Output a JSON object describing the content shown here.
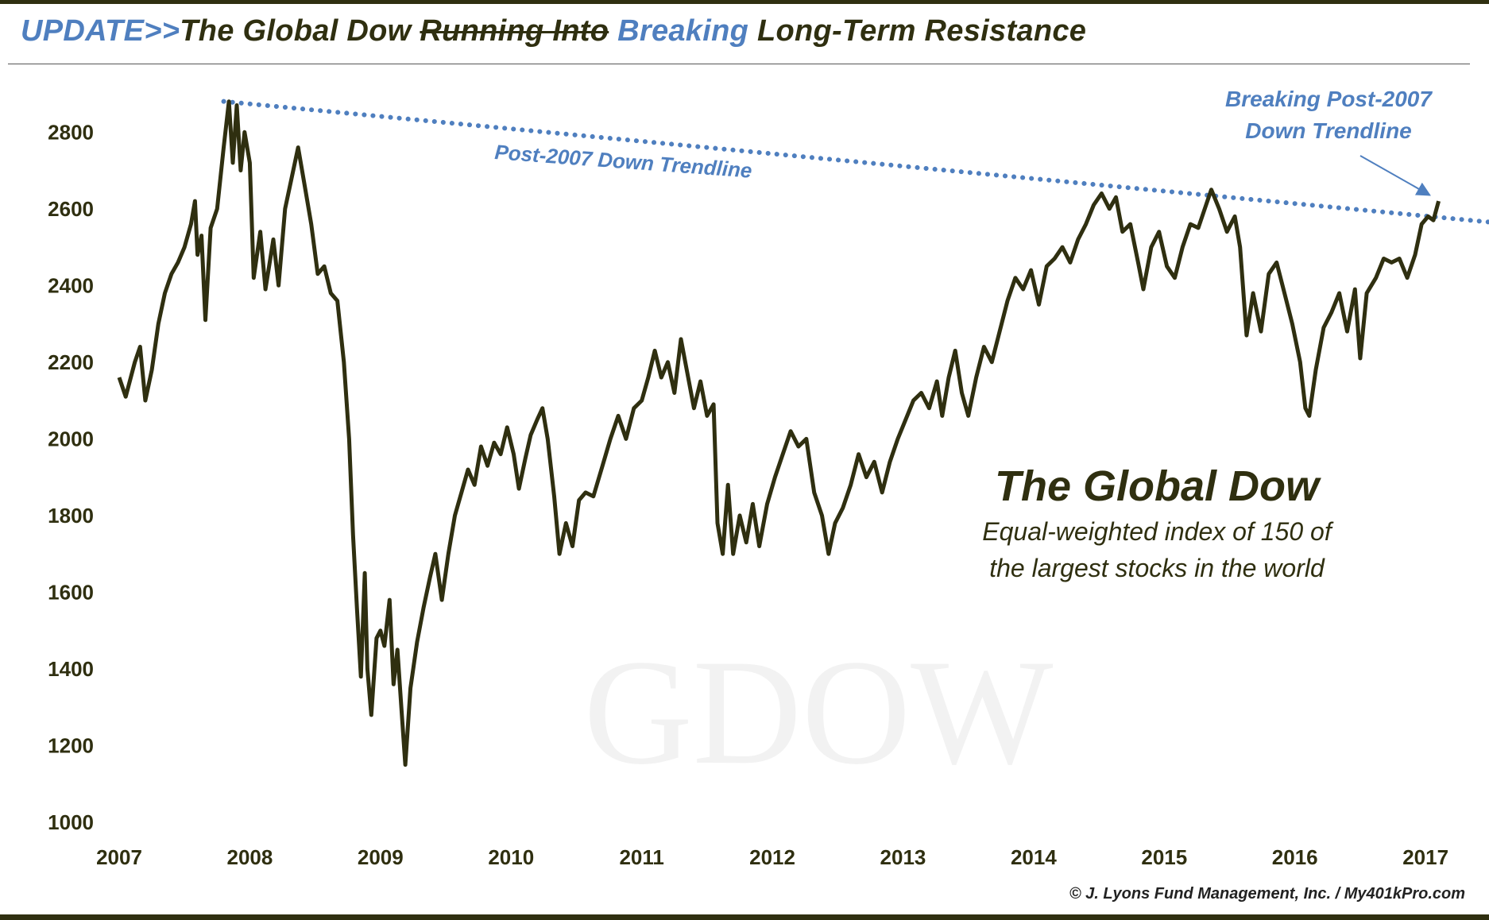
{
  "header": {
    "title_prefix": "UPDATE>>",
    "title_part1": "The Global Dow ",
    "title_struck": "Running Into",
    "title_space": " ",
    "title_breaking": "Breaking",
    "title_part2": " Long-Term Resistance",
    "colors": {
      "blue": "#4f7fbf",
      "dark": "#2f2f10"
    }
  },
  "credit": "© J. Lyons Fund Management, Inc. / My401kPro.com",
  "chart_data": {
    "type": "line",
    "title": "The Global Dow",
    "subtitle_line1": "Equal-weighted index of 150 of",
    "subtitle_line2": "the largest stocks in the world",
    "watermark": "GDOW",
    "xlabel": "",
    "ylabel": "",
    "xlim": [
      2007.0,
      2017.65
    ],
    "ylim": [
      1000,
      2900
    ],
    "x_ticks": [
      "2007",
      "2008",
      "2009",
      "2010",
      "2011",
      "2012",
      "2013",
      "2014",
      "2015",
      "2016",
      "2017"
    ],
    "y_ticks": [
      "1000",
      "1200",
      "1400",
      "1600",
      "1800",
      "2000",
      "2200",
      "2400",
      "2600",
      "2800"
    ],
    "grid": false,
    "line_color": "#2f2f10",
    "series": [
      {
        "values": [
          [
            2007.0,
            2160
          ],
          [
            2007.05,
            2110
          ],
          [
            2007.12,
            2200
          ],
          [
            2007.16,
            2240
          ],
          [
            2007.2,
            2100
          ],
          [
            2007.25,
            2180
          ],
          [
            2007.3,
            2300
          ],
          [
            2007.35,
            2380
          ],
          [
            2007.4,
            2430
          ],
          [
            2007.45,
            2460
          ],
          [
            2007.5,
            2500
          ],
          [
            2007.55,
            2560
          ],
          [
            2007.58,
            2620
          ],
          [
            2007.6,
            2480
          ],
          [
            2007.63,
            2530
          ],
          [
            2007.66,
            2310
          ],
          [
            2007.7,
            2550
          ],
          [
            2007.75,
            2600
          ],
          [
            2007.8,
            2760
          ],
          [
            2007.84,
            2880
          ],
          [
            2007.87,
            2720
          ],
          [
            2007.9,
            2870
          ],
          [
            2007.93,
            2700
          ],
          [
            2007.96,
            2800
          ],
          [
            2008.0,
            2720
          ],
          [
            2008.03,
            2420
          ],
          [
            2008.08,
            2540
          ],
          [
            2008.12,
            2390
          ],
          [
            2008.18,
            2520
          ],
          [
            2008.22,
            2400
          ],
          [
            2008.27,
            2600
          ],
          [
            2008.32,
            2680
          ],
          [
            2008.37,
            2760
          ],
          [
            2008.42,
            2660
          ],
          [
            2008.47,
            2560
          ],
          [
            2008.52,
            2430
          ],
          [
            2008.57,
            2450
          ],
          [
            2008.62,
            2380
          ],
          [
            2008.67,
            2360
          ],
          [
            2008.72,
            2200
          ],
          [
            2008.76,
            2000
          ],
          [
            2008.79,
            1750
          ],
          [
            2008.82,
            1560
          ],
          [
            2008.85,
            1380
          ],
          [
            2008.88,
            1650
          ],
          [
            2008.9,
            1400
          ],
          [
            2008.93,
            1280
          ],
          [
            2008.97,
            1480
          ],
          [
            2009.0,
            1500
          ],
          [
            2009.03,
            1460
          ],
          [
            2009.07,
            1580
          ],
          [
            2009.1,
            1360
          ],
          [
            2009.13,
            1450
          ],
          [
            2009.16,
            1300
          ],
          [
            2009.19,
            1150
          ],
          [
            2009.23,
            1350
          ],
          [
            2009.28,
            1470
          ],
          [
            2009.33,
            1560
          ],
          [
            2009.38,
            1640
          ],
          [
            2009.42,
            1700
          ],
          [
            2009.47,
            1580
          ],
          [
            2009.52,
            1700
          ],
          [
            2009.57,
            1800
          ],
          [
            2009.62,
            1860
          ],
          [
            2009.67,
            1920
          ],
          [
            2009.72,
            1880
          ],
          [
            2009.77,
            1980
          ],
          [
            2009.82,
            1930
          ],
          [
            2009.87,
            1990
          ],
          [
            2009.92,
            1960
          ],
          [
            2009.97,
            2030
          ],
          [
            2010.02,
            1960
          ],
          [
            2010.06,
            1870
          ],
          [
            2010.11,
            1950
          ],
          [
            2010.15,
            2010
          ],
          [
            2010.2,
            2050
          ],
          [
            2010.24,
            2080
          ],
          [
            2010.28,
            2000
          ],
          [
            2010.33,
            1850
          ],
          [
            2010.37,
            1700
          ],
          [
            2010.42,
            1780
          ],
          [
            2010.47,
            1720
          ],
          [
            2010.52,
            1840
          ],
          [
            2010.57,
            1860
          ],
          [
            2010.63,
            1850
          ],
          [
            2010.7,
            1930
          ],
          [
            2010.76,
            2000
          ],
          [
            2010.82,
            2060
          ],
          [
            2010.88,
            2000
          ],
          [
            2010.94,
            2080
          ],
          [
            2011.0,
            2100
          ],
          [
            2011.05,
            2160
          ],
          [
            2011.1,
            2230
          ],
          [
            2011.15,
            2160
          ],
          [
            2011.2,
            2200
          ],
          [
            2011.25,
            2120
          ],
          [
            2011.3,
            2260
          ],
          [
            2011.35,
            2170
          ],
          [
            2011.4,
            2080
          ],
          [
            2011.45,
            2150
          ],
          [
            2011.5,
            2060
          ],
          [
            2011.55,
            2090
          ],
          [
            2011.58,
            1780
          ],
          [
            2011.62,
            1700
          ],
          [
            2011.66,
            1880
          ],
          [
            2011.7,
            1700
          ],
          [
            2011.75,
            1800
          ],
          [
            2011.8,
            1730
          ],
          [
            2011.85,
            1830
          ],
          [
            2011.9,
            1720
          ],
          [
            2011.96,
            1830
          ],
          [
            2012.02,
            1900
          ],
          [
            2012.08,
            1960
          ],
          [
            2012.14,
            2020
          ],
          [
            2012.2,
            1980
          ],
          [
            2012.26,
            2000
          ],
          [
            2012.32,
            1860
          ],
          [
            2012.38,
            1800
          ],
          [
            2012.43,
            1700
          ],
          [
            2012.48,
            1780
          ],
          [
            2012.54,
            1820
          ],
          [
            2012.6,
            1880
          ],
          [
            2012.66,
            1960
          ],
          [
            2012.72,
            1900
          ],
          [
            2012.78,
            1940
          ],
          [
            2012.84,
            1860
          ],
          [
            2012.9,
            1940
          ],
          [
            2012.96,
            2000
          ],
          [
            2013.02,
            2050
          ],
          [
            2013.08,
            2100
          ],
          [
            2013.14,
            2120
          ],
          [
            2013.2,
            2080
          ],
          [
            2013.26,
            2150
          ],
          [
            2013.3,
            2060
          ],
          [
            2013.35,
            2160
          ],
          [
            2013.4,
            2230
          ],
          [
            2013.45,
            2120
          ],
          [
            2013.5,
            2060
          ],
          [
            2013.56,
            2160
          ],
          [
            2013.62,
            2240
          ],
          [
            2013.68,
            2200
          ],
          [
            2013.74,
            2280
          ],
          [
            2013.8,
            2360
          ],
          [
            2013.86,
            2420
          ],
          [
            2013.92,
            2390
          ],
          [
            2013.98,
            2440
          ],
          [
            2014.04,
            2350
          ],
          [
            2014.1,
            2450
          ],
          [
            2014.16,
            2470
          ],
          [
            2014.22,
            2500
          ],
          [
            2014.28,
            2460
          ],
          [
            2014.34,
            2520
          ],
          [
            2014.4,
            2560
          ],
          [
            2014.46,
            2610
          ],
          [
            2014.52,
            2640
          ],
          [
            2014.58,
            2600
          ],
          [
            2014.63,
            2630
          ],
          [
            2014.68,
            2540
          ],
          [
            2014.74,
            2560
          ],
          [
            2014.8,
            2460
          ],
          [
            2014.84,
            2390
          ],
          [
            2014.9,
            2500
          ],
          [
            2014.96,
            2540
          ],
          [
            2015.02,
            2450
          ],
          [
            2015.08,
            2420
          ],
          [
            2015.14,
            2500
          ],
          [
            2015.2,
            2560
          ],
          [
            2015.26,
            2550
          ],
          [
            2015.32,
            2610
          ],
          [
            2015.36,
            2650
          ],
          [
            2015.42,
            2600
          ],
          [
            2015.48,
            2540
          ],
          [
            2015.54,
            2580
          ],
          [
            2015.58,
            2500
          ],
          [
            2015.63,
            2270
          ],
          [
            2015.68,
            2380
          ],
          [
            2015.74,
            2280
          ],
          [
            2015.8,
            2430
          ],
          [
            2015.86,
            2460
          ],
          [
            2015.92,
            2380
          ],
          [
            2015.98,
            2300
          ],
          [
            2016.04,
            2200
          ],
          [
            2016.08,
            2080
          ],
          [
            2016.11,
            2060
          ],
          [
            2016.16,
            2180
          ],
          [
            2016.22,
            2290
          ],
          [
            2016.28,
            2330
          ],
          [
            2016.34,
            2380
          ],
          [
            2016.4,
            2280
          ],
          [
            2016.46,
            2390
          ],
          [
            2016.5,
            2210
          ],
          [
            2016.55,
            2380
          ],
          [
            2016.62,
            2420
          ],
          [
            2016.68,
            2470
          ],
          [
            2016.74,
            2460
          ],
          [
            2016.8,
            2470
          ],
          [
            2016.86,
            2420
          ],
          [
            2016.92,
            2480
          ],
          [
            2016.97,
            2560
          ],
          [
            2017.02,
            2580
          ],
          [
            2017.06,
            2570
          ],
          [
            2017.1,
            2620
          ]
        ]
      }
    ],
    "trendline": {
      "label": "Post-2007 Down Trendline",
      "color": "#4f7fbf",
      "style": "dotted",
      "start": [
        2007.8,
        2880
      ],
      "end": [
        2017.65,
        2560
      ]
    },
    "annotations": [
      {
        "line1": "Breaking Post-2007",
        "line2": "Down Trendline",
        "target": [
          2017.02,
          2590
        ]
      }
    ]
  }
}
